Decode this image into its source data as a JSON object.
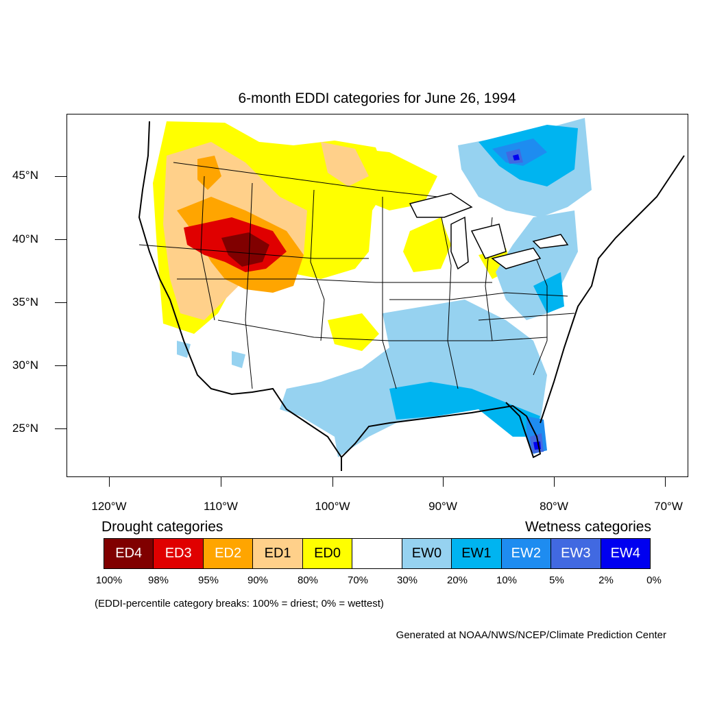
{
  "title": "6-month EDDI categories for June 26, 1994",
  "map": {
    "lat_labels": [
      "45°N",
      "40°N",
      "35°N",
      "30°N",
      "25°N"
    ],
    "lon_labels": [
      "120°W",
      "110°W",
      "100°W",
      "90°W",
      "80°W",
      "70°W"
    ],
    "colors": {
      "ED4": "#800000",
      "ED3": "#e00000",
      "ED2": "#ffa500",
      "ED1": "#ffd08a",
      "ED0": "#ffff00",
      "neutral": "#ffffff",
      "EW0": "#96d2f0",
      "EW1": "#00b4f0",
      "EW2": "#1e8cf0",
      "EW3": "#4169e1",
      "EW4": "#0000f0",
      "lines": "#000000"
    }
  },
  "legend": {
    "drought_heading": "Drought categories",
    "wetness_heading": "Wetness categories",
    "categories": [
      {
        "label": "ED4",
        "color": "#800000",
        "text_color": "#ffffff"
      },
      {
        "label": "ED3",
        "color": "#e00000",
        "text_color": "#ffffff"
      },
      {
        "label": "ED2",
        "color": "#ffa500",
        "text_color": "#ffffff"
      },
      {
        "label": "ED1",
        "color": "#ffd08a",
        "text_color": "#000000"
      },
      {
        "label": "ED0",
        "color": "#ffff00",
        "text_color": "#000000"
      },
      {
        "label": "",
        "color": "#ffffff",
        "text_color": "#000000"
      },
      {
        "label": "EW0",
        "color": "#96d2f0",
        "text_color": "#000000"
      },
      {
        "label": "EW1",
        "color": "#00b4f0",
        "text_color": "#000000"
      },
      {
        "label": "EW2",
        "color": "#1e8cf0",
        "text_color": "#ffffff"
      },
      {
        "label": "EW3",
        "color": "#4169e1",
        "text_color": "#ffffff"
      },
      {
        "label": "EW4",
        "color": "#0000f0",
        "text_color": "#ffffff"
      }
    ],
    "breaks": [
      "100%",
      "98%",
      "95%",
      "90%",
      "80%",
      "70%",
      "30%",
      "20%",
      "10%",
      "5%",
      "2%",
      "0%"
    ]
  },
  "caption": "(EDDI-percentile category breaks: 100% = driest; 0% = wettest)",
  "credit": "Generated at NOAA/NWS/NCEP/Climate Prediction Center"
}
